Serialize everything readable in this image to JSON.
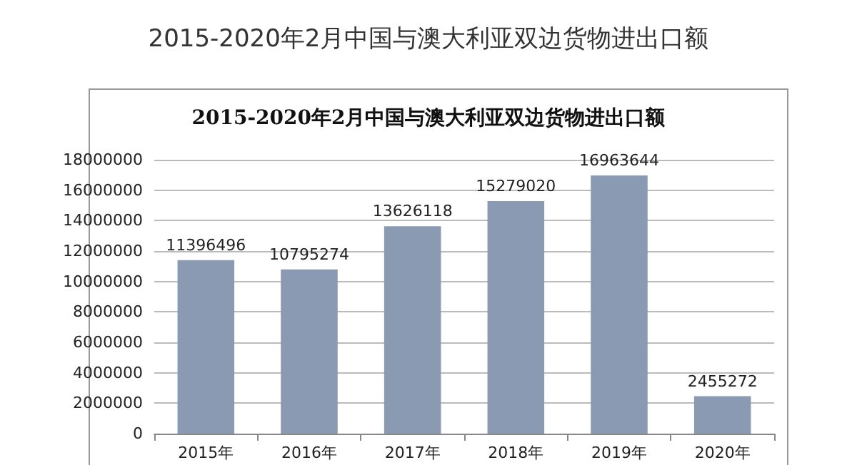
{
  "chart_data": {
    "type": "bar",
    "title": "2015-2020年2月中国与澳大利亚双边货物进出口额",
    "subtitle": "2015-2020年2月中国与澳大利亚双边货物进出口额",
    "categories": [
      "2015年",
      "2016年",
      "2017年",
      "2018年",
      "2019年",
      "2020年"
    ],
    "values": [
      11396496,
      10795274,
      13626118,
      15279020,
      16963644,
      2455272
    ],
    "color": "#8a9ab3",
    "ylim": [
      0,
      18000000
    ],
    "yticks": [
      0,
      2000000,
      4000000,
      6000000,
      8000000,
      10000000,
      12000000,
      14000000,
      16000000,
      18000000
    ],
    "grid": "y",
    "data_labels": true
  }
}
